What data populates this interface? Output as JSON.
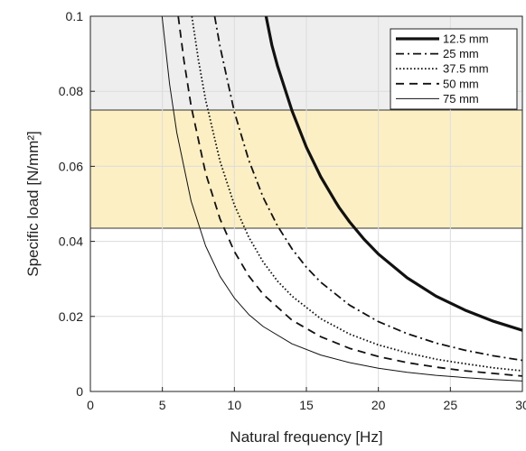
{
  "chart_data": {
    "type": "line",
    "xlabel": "Natural frequency [Hz]",
    "ylabel": "Specific load [N/mm²]",
    "xlim": [
      0,
      30
    ],
    "ylim": [
      0,
      0.1
    ],
    "grid": true,
    "legend_placement": "top-right",
    "x_ticks": [
      "0",
      "5",
      "10",
      "15",
      "20",
      "25",
      "30"
    ],
    "y_ticks": [
      "0",
      "0.02",
      "0.04",
      "0.06",
      "0.08",
      "0.1"
    ],
    "bands": [
      {
        "y_range": [
          0.0435,
          0.075
        ],
        "color": "#fcefc4"
      },
      {
        "y_range": [
          0.075,
          0.1
        ],
        "color": "#eeeeee"
      }
    ],
    "series": [
      {
        "name": "12.5 mm",
        "style": "solid-thick",
        "x": [
          12.2,
          12.6,
          13,
          14,
          15,
          16,
          17,
          17.3,
          18,
          19,
          20,
          22,
          24,
          26,
          28,
          30
        ],
        "y": [
          0.1,
          0.0923,
          0.0867,
          0.0748,
          0.0651,
          0.0572,
          0.0507,
          0.0489,
          0.0452,
          0.0406,
          0.0366,
          0.0303,
          0.0254,
          0.0217,
          0.0187,
          0.0163
        ]
      },
      {
        "name": "25 mm",
        "style": "dash-dot",
        "x": [
          8.63,
          9,
          10,
          11,
          12,
          13,
          14,
          15,
          16,
          18,
          20,
          22,
          24,
          26,
          28,
          30
        ],
        "y": [
          0.1,
          0.092,
          0.0745,
          0.0616,
          0.0517,
          0.0441,
          0.038,
          0.0331,
          0.0291,
          0.023,
          0.0186,
          0.0154,
          0.0129,
          0.011,
          0.0095,
          0.0083
        ]
      },
      {
        "name": "37.5 mm",
        "style": "dotted",
        "x": [
          7.05,
          7.5,
          8,
          9,
          10,
          11,
          12,
          13,
          14,
          16,
          18,
          20,
          22,
          24,
          26,
          28,
          30
        ],
        "y": [
          0.1,
          0.0884,
          0.0777,
          0.0614,
          0.0497,
          0.0411,
          0.0345,
          0.0294,
          0.0254,
          0.0194,
          0.0153,
          0.0124,
          0.0103,
          0.0086,
          0.0074,
          0.0063,
          0.0055
        ]
      },
      {
        "name": "50 mm",
        "style": "dashed",
        "x": [
          6.1,
          6.5,
          7,
          8,
          9,
          10,
          11,
          12,
          14,
          16,
          18,
          20,
          22,
          24,
          26,
          28,
          30
        ],
        "y": [
          0.1,
          0.0881,
          0.076,
          0.0582,
          0.046,
          0.0373,
          0.0308,
          0.0259,
          0.019,
          0.0146,
          0.0115,
          0.0093,
          0.0077,
          0.0065,
          0.0055,
          0.0048,
          0.0041
        ]
      },
      {
        "name": "75 mm",
        "style": "solid-thin",
        "x": [
          4.98,
          5.5,
          6,
          7,
          8,
          9,
          10,
          11,
          12,
          14,
          16,
          18,
          20,
          22,
          24,
          26,
          28,
          30
        ],
        "y": [
          0.1,
          0.082,
          0.069,
          0.0507,
          0.0388,
          0.0307,
          0.0249,
          0.0205,
          0.0173,
          0.0127,
          0.0097,
          0.0077,
          0.0062,
          0.0051,
          0.0043,
          0.0037,
          0.0032,
          0.0028
        ]
      }
    ]
  }
}
